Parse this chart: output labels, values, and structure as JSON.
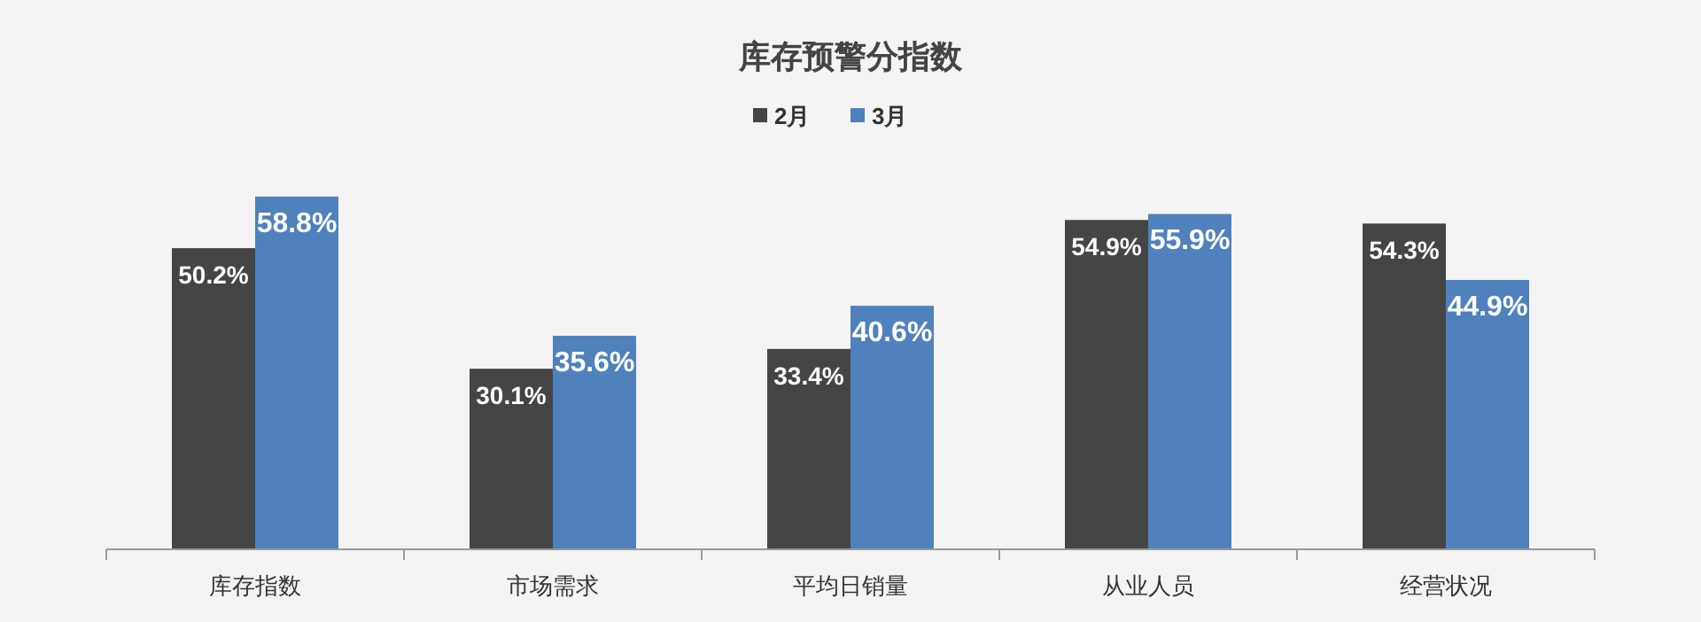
{
  "chart_data": {
    "type": "bar",
    "title": "库存预警分指数",
    "categories": [
      "库存指数",
      "市场需求",
      "平均日销量",
      "从业人员",
      "经营状况"
    ],
    "series": [
      {
        "name": "2月",
        "color": "#454545",
        "values": [
          50.2,
          30.1,
          33.4,
          54.9,
          54.3
        ],
        "value_labels": [
          "50.2%",
          "30.1%",
          "33.4%",
          "54.9%",
          "54.3%"
        ]
      },
      {
        "name": "3月",
        "color": "#4f81bd",
        "values": [
          58.8,
          35.6,
          40.6,
          55.9,
          44.9
        ],
        "value_labels": [
          "58.8%",
          "35.6%",
          "40.6%",
          "55.9%",
          "44.9%"
        ]
      }
    ],
    "legend": "top",
    "grid": false
  }
}
